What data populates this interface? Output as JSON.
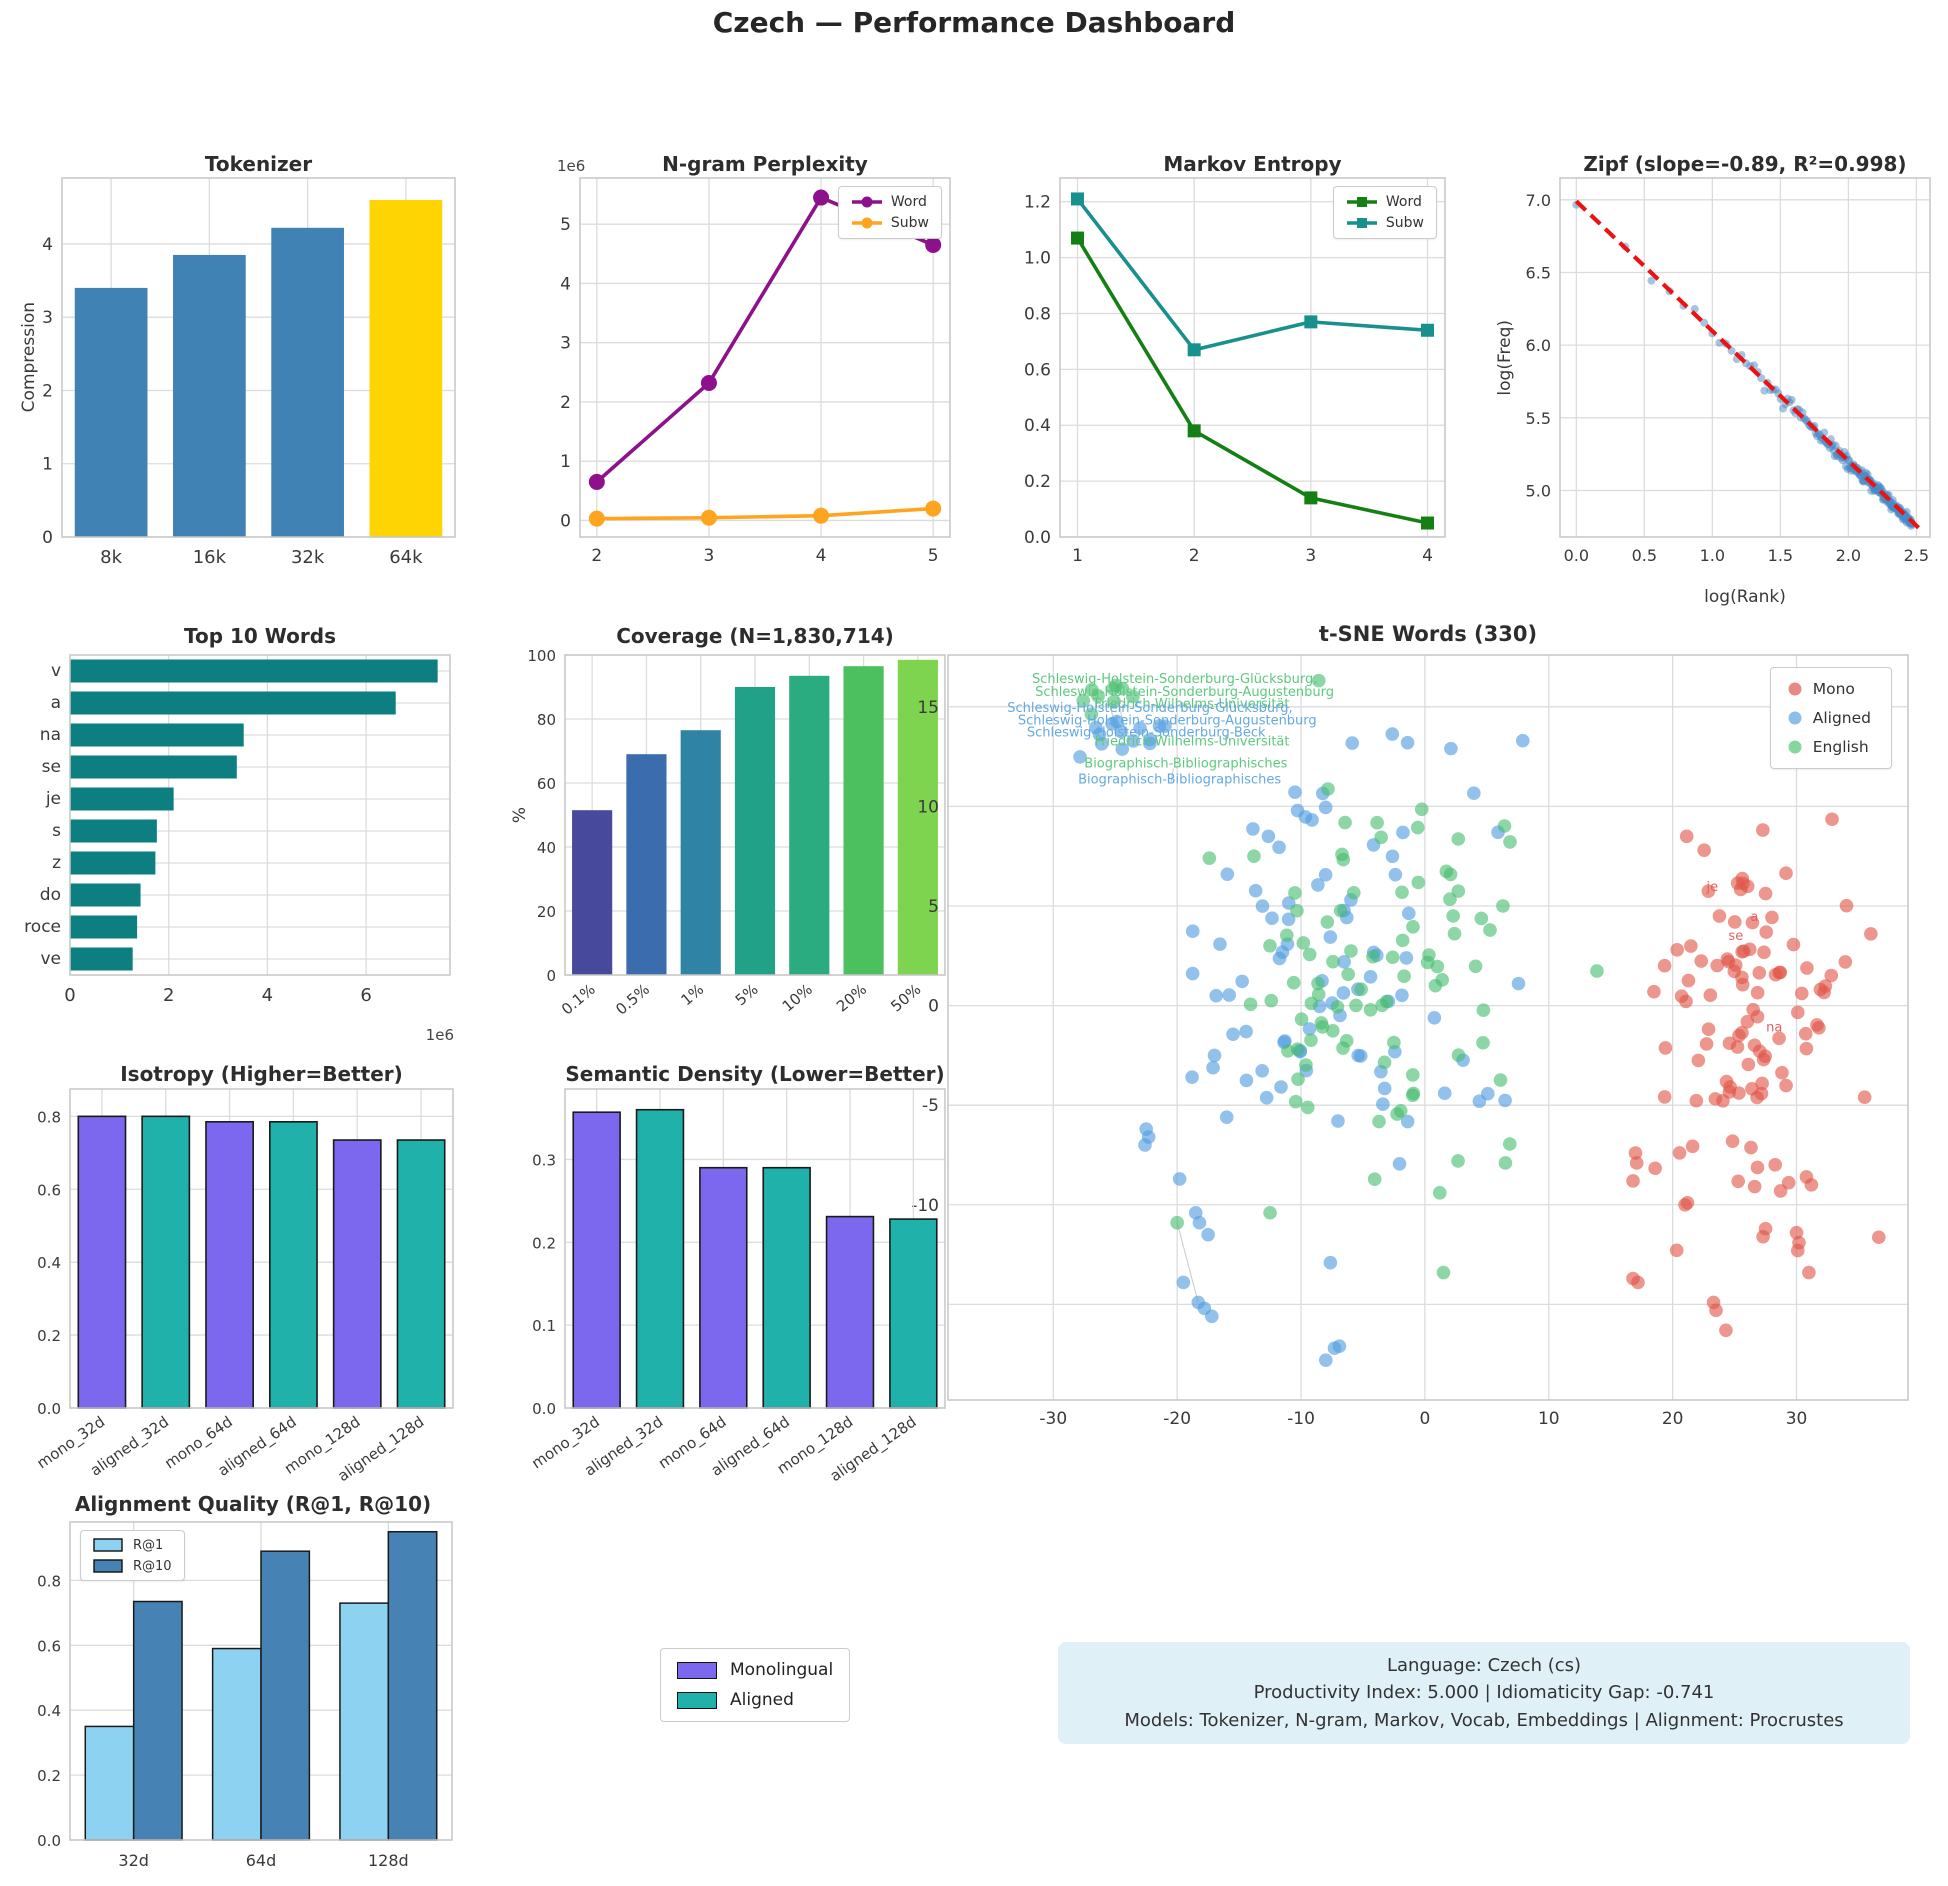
{
  "page": {
    "title": "Czech — Performance Dashboard"
  },
  "chart_data": {
    "tokenizer": {
      "type": "bar",
      "title": "Tokenizer",
      "ylabel": "Compression",
      "categories": [
        "8k",
        "16k",
        "32k",
        "64k"
      ],
      "values": [
        3.4,
        3.85,
        4.22,
        4.6
      ],
      "bar_colors": [
        "#4182b4",
        "#4182b4",
        "#4182b4",
        "#ffd403"
      ],
      "ylim": [
        0,
        4.9
      ],
      "yticks": [
        0,
        1,
        2,
        3,
        4
      ],
      "yticklabels": [
        "0",
        "1",
        "2",
        "3",
        "4"
      ]
    },
    "ngram": {
      "type": "line",
      "title": "N-gram Perplexity",
      "offset_label": "1e6",
      "x": [
        2,
        3,
        4,
        5
      ],
      "xlim": [
        1.85,
        5.15
      ],
      "ylim": [
        -280000,
        5780000
      ],
      "xticks": [
        2,
        3,
        4,
        5
      ],
      "xticklabels": [
        "2",
        "3",
        "4",
        "5"
      ],
      "yticks": [
        0,
        1000000,
        2000000,
        3000000,
        4000000,
        5000000
      ],
      "yticklabels": [
        "0",
        "1",
        "2",
        "3",
        "4",
        "5"
      ],
      "series": [
        {
          "name": "Word",
          "color": "#8d118d",
          "marker": "circle",
          "values": [
            650000,
            2320000,
            5450000,
            4650000
          ]
        },
        {
          "name": "Subw",
          "color": "#ffa41e",
          "marker": "circle",
          "values": [
            30000,
            45000,
            80000,
            200000
          ]
        }
      ],
      "legend_pos": "tr"
    },
    "markov": {
      "type": "line",
      "title": "Markov Entropy",
      "x": [
        1,
        2,
        3,
        4
      ],
      "xlim": [
        0.85,
        4.15
      ],
      "ylim": [
        0,
        1.285
      ],
      "xticks": [
        1,
        2,
        3,
        4
      ],
      "xticklabels": [
        "1",
        "2",
        "3",
        "4"
      ],
      "yticks": [
        0,
        0.2,
        0.4,
        0.6,
        0.8,
        1.0,
        1.2
      ],
      "yticklabels": [
        "0.0",
        "0.2",
        "0.4",
        "0.6",
        "0.8",
        "1.0",
        "1.2"
      ],
      "series": [
        {
          "name": "Word",
          "color": "#148014",
          "marker": "square",
          "values": [
            1.07,
            0.38,
            0.14,
            0.05
          ]
        },
        {
          "name": "Subw",
          "color": "#17908e",
          "marker": "square",
          "values": [
            1.21,
            0.67,
            0.77,
            0.74
          ]
        }
      ],
      "legend_pos": "tr"
    },
    "zipf": {
      "type": "zipf",
      "title": "Zipf (slope=-0.89, R²=0.998)",
      "xlabel": "log(Rank)",
      "ylabel": "log(Freq)",
      "slope": -0.89,
      "intercept": 6.97,
      "r2": 0.998,
      "n_points": 230,
      "log_rank_max": 2.47,
      "point_color": "#4a8ac6",
      "fit_line": {
        "x1": 0,
        "y1": 6.99,
        "x2": 2.52,
        "y2": 4.74,
        "color": "#ee1111"
      },
      "xlim": [
        -0.12,
        2.6
      ],
      "ylim": [
        4.68,
        7.15
      ],
      "xticks": [
        0,
        0.5,
        1.0,
        1.5,
        2.0,
        2.5
      ],
      "xticklabels": [
        "0.0",
        "0.5",
        "1.0",
        "1.5",
        "2.0",
        "2.5"
      ],
      "yticks": [
        5.0,
        5.5,
        6.0,
        6.5,
        7.0
      ],
      "yticklabels": [
        "5.0",
        "5.5",
        "6.0",
        "6.5",
        "7.0"
      ]
    },
    "top_words": {
      "type": "barh",
      "title": "Top 10 Words",
      "offset_label": "1e6",
      "categories": [
        "v",
        "a",
        "na",
        "se",
        "je",
        "s",
        "z",
        "do",
        "roce",
        "ve"
      ],
      "values": [
        7450000,
        6600000,
        3520000,
        3380000,
        2100000,
        1760000,
        1730000,
        1430000,
        1360000,
        1270000
      ],
      "bar_color": "#0e7f80",
      "xlim": [
        0,
        7700000
      ],
      "xticks": [
        0,
        2000000,
        4000000,
        6000000
      ],
      "xticklabels": [
        "0",
        "2",
        "4",
        "6"
      ]
    },
    "coverage": {
      "type": "bar",
      "title": "Coverage (N=1,830,714)",
      "ylabel": "%",
      "categories": [
        "0.1%",
        "0.5%",
        "1%",
        "5%",
        "10%",
        "20%",
        "50%"
      ],
      "values": [
        51.5,
        69,
        76.5,
        90,
        93.5,
        96.5,
        98.5
      ],
      "bar_colors": [
        "#46499c",
        "#3a6cae",
        "#2f84a6",
        "#21a187",
        "#2bac80",
        "#4cc05e",
        "#7ed34f"
      ],
      "ylim": [
        0,
        100
      ],
      "yticks": [
        0,
        20,
        40,
        60,
        80,
        100
      ],
      "yticklabels": [
        "0",
        "20",
        "40",
        "60",
        "80",
        "100"
      ],
      "xtick_rotation": -40
    },
    "tsne": {
      "type": "tsne",
      "title": "t-SNE Words (330)",
      "xlim": [
        -38.5,
        39
      ],
      "ylim": [
        -19.8,
        17.6
      ],
      "xticks": [
        -30,
        -20,
        -10,
        0,
        10,
        20,
        30
      ],
      "xticklabels": [
        "-30",
        "-20",
        "-10",
        "0",
        "10",
        "20",
        "30"
      ],
      "yticks": [
        -15,
        -10,
        -5,
        0,
        5,
        10,
        15
      ],
      "yticklabels": [
        "-15",
        "-10",
        "-5",
        "0",
        "5",
        "10",
        "15"
      ],
      "legend": [
        {
          "name": "Mono",
          "color": "#e0635b"
        },
        {
          "name": "Aligned",
          "color": "#64a9e3"
        },
        {
          "name": "English",
          "color": "#5dc97d"
        }
      ],
      "clusters": [
        {
          "name": "Mono",
          "color": "#e15549",
          "n": 100,
          "cx": 26.5,
          "cy": -1.5,
          "sx": 4.2,
          "sy": 4.6,
          "extra": [
            [
              17,
              -7.4
            ],
            [
              17.1,
              -7.9
            ],
            [
              16.8,
              -8.8
            ],
            [
              21,
              -10
            ],
            [
              16.8,
              -13.7
            ],
            [
              17.2,
              -13.9
            ],
            [
              27.5,
              -11.2
            ],
            [
              27.3,
              -11.6
            ],
            [
              30,
              -11.4
            ],
            [
              30.2,
              -11.9
            ],
            [
              30.1,
              -12.3
            ],
            [
              31,
              -13.4
            ],
            [
              23.3,
              -14.9
            ],
            [
              23.5,
              -15.3
            ],
            [
              24.3,
              -16.3
            ],
            [
              21.2,
              -9.9
            ],
            [
              30.8,
              -8.6
            ],
            [
              31.2,
              -9
            ],
            [
              35.5,
              -4.6
            ],
            [
              36,
              3.6
            ]
          ]
        },
        {
          "name": "Aligned",
          "color": "#4f9de0",
          "n": 82,
          "cx": -9,
          "cy": 1.8,
          "sx": 6.4,
          "sy": 5.6,
          "sub": {
            "n": 14,
            "cx": -24.3,
            "cy": 13.8,
            "sx": 1.5,
            "sy": 0.6
          },
          "extra": [
            [
              -22.5,
              -6.2
            ],
            [
              -22.3,
              -6.6
            ],
            [
              -22.6,
              -7
            ],
            [
              -19.8,
              -8.7
            ],
            [
              -18.5,
              -10.4
            ],
            [
              -18.2,
              -10.9
            ],
            [
              -17.5,
              -11.5
            ],
            [
              -19.5,
              -13.9
            ],
            [
              -18.3,
              -14.9
            ],
            [
              -17.8,
              -15.2
            ],
            [
              -17.2,
              -15.6
            ],
            [
              -8,
              -17.8
            ],
            [
              -7.3,
              -17.2
            ],
            [
              -6.9,
              -17.1
            ],
            [
              -16,
              -5.6
            ],
            [
              4.4,
              -4.8
            ],
            [
              7.9,
              13.3
            ],
            [
              -1.4,
              13.2
            ],
            [
              5.9,
              8.7
            ],
            [
              2.1,
              12.9
            ]
          ]
        },
        {
          "name": "English",
          "color": "#47bd6d",
          "n": 86,
          "cx": -4,
          "cy": 2.2,
          "sx": 5.6,
          "sy": 5.4,
          "sub": {
            "n": 9,
            "cx": -25.6,
            "cy": 15.4,
            "sx": 1.2,
            "sy": 0.5
          },
          "extra": [
            [
              -20,
              -10.9
            ],
            [
              -12.5,
              -10.4
            ],
            [
              1.5,
              -13.4
            ],
            [
              -13.8,
              7.5
            ],
            [
              6.5,
              -7.9
            ],
            [
              1.2,
              -9.4
            ],
            [
              -17.4,
              7.4
            ],
            [
              6.3,
              5
            ]
          ]
        }
      ],
      "connectors": [
        [
          -25.5,
          15.2,
          -24.9,
          13.9
        ],
        [
          -24.8,
          15.5,
          -24.2,
          13.7
        ],
        [
          -20.3,
          11.9,
          -20.5,
          11.2
        ],
        [
          -20,
          -10.9,
          -18.3,
          -14.9
        ]
      ],
      "annotations": [
        {
          "text": "Schleswig-Holstein-Sonderburg-Glücksburg,",
          "x": -20.2,
          "y": 16.2,
          "color": "#5dc97d"
        },
        {
          "text": "Schleswig-Holstein-Sonderburg-Augustenburg",
          "x": -19.4,
          "y": 15.55,
          "color": "#5dc97d"
        },
        {
          "text": "Friedrich-Wilhelms-Universität",
          "x": -18.8,
          "y": 14.95,
          "color": "#5dc97d"
        },
        {
          "text": "Schleswig-Holstein-Sonderburg-Glücksburg,",
          "x": -22.2,
          "y": 14.75,
          "color": "#64a9e3"
        },
        {
          "text": "Schleswig-Holstein-Sonderburg-Augustenburg",
          "x": -20.8,
          "y": 14.1,
          "color": "#64a9e3"
        },
        {
          "text": "Schleswig-Holstein-Sonderburg-Beck",
          "x": -22.5,
          "y": 13.5,
          "color": "#64a9e3"
        },
        {
          "text": "Friedrich-Wilhelms-Universität",
          "x": -18.8,
          "y": 13.05,
          "color": "#5dc97d"
        },
        {
          "text": "Biographisch-Bibliographisches",
          "x": -19.3,
          "y": 11.95,
          "color": "#5dc97d"
        },
        {
          "text": "Biographisch-Bibliographisches",
          "x": -19.8,
          "y": 11.15,
          "color": "#64a9e3"
        },
        {
          "text": "je",
          "x": 23.2,
          "y": 5.75,
          "color": "#e0635b"
        },
        {
          "text": "a",
          "x": 26.6,
          "y": 4.25,
          "color": "#e0635b"
        },
        {
          "text": "se",
          "x": 25.1,
          "y": 3.3,
          "color": "#e0635b"
        },
        {
          "text": "na",
          "x": 28.2,
          "y": -1.3,
          "color": "#e0635b"
        }
      ]
    },
    "isotropy": {
      "type": "bar",
      "title": "Isotropy (Higher=Better)",
      "categories": [
        "mono_32d",
        "aligned_32d",
        "mono_64d",
        "aligned_64d",
        "mono_128d",
        "aligned_128d"
      ],
      "values": [
        0.8,
        0.8,
        0.785,
        0.785,
        0.735,
        0.735
      ],
      "bar_colors": [
        "#7b68ee",
        "#20b2aa",
        "#7b68ee",
        "#20b2aa",
        "#7b68ee",
        "#20b2aa"
      ],
      "edge_color": "#1a1a1a",
      "ylim": [
        0,
        0.875
      ],
      "yticks": [
        0,
        0.2,
        0.4,
        0.6,
        0.8
      ],
      "yticklabels": [
        "0.0",
        "0.2",
        "0.4",
        "0.6",
        "0.8"
      ],
      "xtick_rotation": -35
    },
    "semantic_density": {
      "type": "bar",
      "title": "Semantic Density (Lower=Better)",
      "categories": [
        "mono_32d",
        "aligned_32d",
        "mono_64d",
        "aligned_64d",
        "mono_128d",
        "aligned_128d"
      ],
      "values": [
        0.357,
        0.36,
        0.29,
        0.29,
        0.231,
        0.228
      ],
      "bar_colors": [
        "#7b68ee",
        "#20b2aa",
        "#7b68ee",
        "#20b2aa",
        "#7b68ee",
        "#20b2aa"
      ],
      "edge_color": "#1a1a1a",
      "ylim": [
        0,
        0.385
      ],
      "yticks": [
        0,
        0.1,
        0.2,
        0.3
      ],
      "yticklabels": [
        "0.0",
        "0.1",
        "0.2",
        "0.3"
      ],
      "xtick_rotation": -35
    },
    "alignment_quality": {
      "type": "groupbar",
      "title": "Alignment Quality (R@1, R@10)",
      "categories": [
        "32d",
        "64d",
        "128d"
      ],
      "series": [
        {
          "name": "R@1",
          "color": "#8dd2f0",
          "values": [
            0.35,
            0.59,
            0.73
          ]
        },
        {
          "name": "R@10",
          "color": "#4682b4",
          "values": [
            0.735,
            0.89,
            0.95
          ]
        }
      ],
      "edge_color": "#1a1a1a",
      "ylim": [
        0,
        0.98
      ],
      "yticks": [
        0,
        0.2,
        0.4,
        0.6,
        0.8
      ],
      "yticklabels": [
        "0.0",
        "0.2",
        "0.4",
        "0.6",
        "0.8"
      ],
      "legend_pos": "tl"
    }
  },
  "figure_legend": {
    "items": [
      {
        "label": "Monolingual",
        "color": "#7b68ee"
      },
      {
        "label": "Aligned",
        "color": "#20b2aa"
      }
    ]
  },
  "info_box": {
    "lines": [
      "Language: Czech (cs)",
      "Productivity Index: 5.000  |  Idiomaticity Gap: -0.741",
      "Models: Tokenizer, N-gram, Markov, Vocab, Embeddings  |  Alignment: Procrustes"
    ]
  }
}
